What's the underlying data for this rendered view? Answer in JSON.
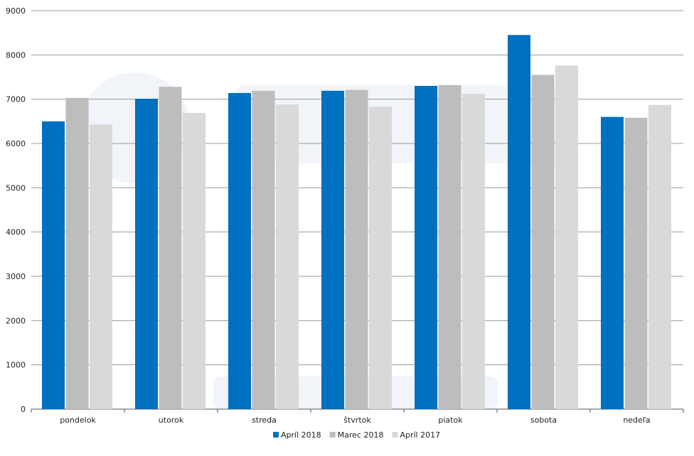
{
  "chart_data": {
    "type": "bar",
    "categories": [
      "pondelok",
      "utorok",
      "streda",
      "štvrtok",
      "piatok",
      "sobota",
      "nedeľa"
    ],
    "series": [
      {
        "name": "Apríl 2018",
        "color": "#0070c0",
        "values": [
          6500,
          7010,
          7140,
          7190,
          7300,
          8450,
          6600
        ]
      },
      {
        "name": "Marec 2018",
        "color": "#bdbdbd",
        "values": [
          7030,
          7280,
          7190,
          7210,
          7320,
          7550,
          6580
        ]
      },
      {
        "name": "Apríl 2017",
        "color": "#d9d9d9",
        "values": [
          6430,
          6690,
          6880,
          6830,
          7120,
          7760,
          6870
        ]
      }
    ],
    "ylim": [
      0,
      9000
    ],
    "yticks": [
      0,
      1000,
      2000,
      3000,
      4000,
      5000,
      6000,
      7000,
      8000,
      9000
    ],
    "grid": true,
    "legend": "bottom-center"
  },
  "colors": {
    "grid": "#9a9a9a",
    "axis": "#555555",
    "watermark": "#f1f4f8"
  }
}
